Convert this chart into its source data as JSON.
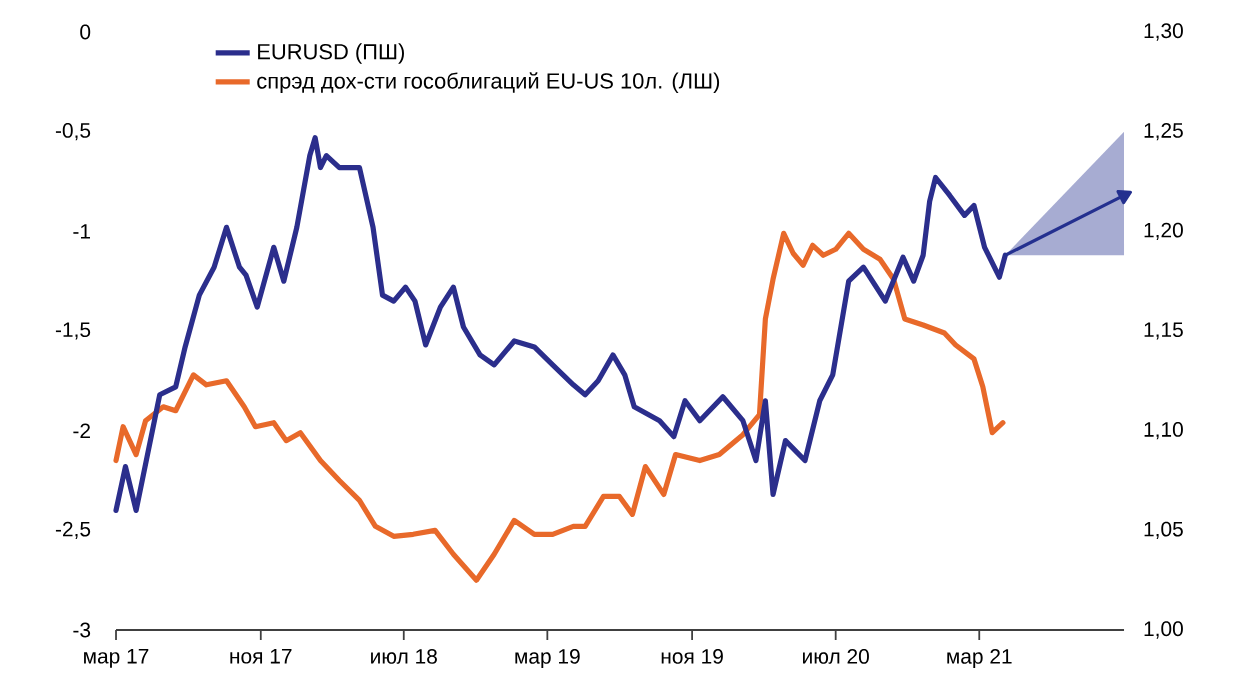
{
  "chart_data": {
    "type": "line",
    "xlim": [
      "2017-03-01",
      "2021-11-01"
    ],
    "xticks": [
      {
        "value": "2017-03-01",
        "label": "мар 17"
      },
      {
        "value": "2017-11-01",
        "label": "ноя 17"
      },
      {
        "value": "2018-07-01",
        "label": "июл 18"
      },
      {
        "value": "2019-03-01",
        "label": "мар 19"
      },
      {
        "value": "2019-11-01",
        "label": "ноя 19"
      },
      {
        "value": "2020-07-01",
        "label": "июл 20"
      },
      {
        "value": "2021-03-01",
        "label": "мар 21"
      }
    ],
    "ylim": [
      -3,
      0
    ],
    "yticks": [
      0,
      {
        "value": -0.5,
        "label": "-0,5"
      },
      -1,
      {
        "value": -1.5,
        "label": "-1,5"
      },
      -2,
      {
        "value": -2.5,
        "label": "-2,5"
      },
      -3
    ],
    "y2lim": [
      1.0,
      1.3
    ],
    "y2ticks": [
      {
        "value": 1.0,
        "label": "1,00"
      },
      {
        "value": 1.05,
        "label": "1,05"
      },
      {
        "value": 1.1,
        "label": "1,10"
      },
      {
        "value": 1.15,
        "label": "1,15"
      },
      {
        "value": 1.2,
        "label": "1,20"
      },
      {
        "value": 1.25,
        "label": "1,25"
      },
      {
        "value": 1.3,
        "label": "1,30"
      }
    ],
    "legend": "top left",
    "series": [
      {
        "name": "EURUSD (ПШ)",
        "color": "#2b2e8c",
        "axis": "y2",
        "x": [
          "2017-03-01",
          "2017-03-17",
          "2017-04-04",
          "2017-05-14",
          "2017-06-10",
          "2017-06-26",
          "2017-07-20",
          "2017-08-14",
          "2017-09-04",
          "2017-09-26",
          "2017-10-07",
          "2017-10-26",
          "2017-11-23",
          "2017-12-10",
          "2018-01-01",
          "2018-01-23",
          "2018-02-01",
          "2018-02-10",
          "2018-02-20",
          "2018-03-14",
          "2018-04-17",
          "2018-05-10",
          "2018-05-26",
          "2018-06-14",
          "2018-07-04",
          "2018-07-20",
          "2018-08-07",
          "2018-09-01",
          "2018-09-23",
          "2018-10-10",
          "2018-11-07",
          "2018-12-01",
          "2019-01-04",
          "2019-02-07",
          "2019-03-10",
          "2019-04-14",
          "2019-05-04",
          "2019-05-26",
          "2019-06-20",
          "2019-07-10",
          "2019-07-26",
          "2019-09-07",
          "2019-10-01",
          "2019-10-20",
          "2019-11-14",
          "2019-12-23",
          "2020-01-26",
          "2020-02-17",
          "2020-03-04",
          "2020-03-17",
          "2020-04-07",
          "2020-05-10",
          "2020-06-04",
          "2020-06-26",
          "2020-07-23",
          "2020-08-17",
          "2020-09-23",
          "2020-10-23",
          "2020-11-10",
          "2020-11-26",
          "2020-12-07",
          "2020-12-17",
          "2021-01-10",
          "2021-02-04",
          "2021-02-20",
          "2021-03-10",
          "2021-04-04",
          "2021-04-14"
        ],
        "values": [
          1.06,
          1.082,
          1.06,
          1.118,
          1.122,
          1.142,
          1.168,
          1.182,
          1.202,
          1.182,
          1.178,
          1.162,
          1.192,
          1.175,
          1.202,
          1.238,
          1.247,
          1.232,
          1.238,
          1.232,
          1.232,
          1.202,
          1.168,
          1.165,
          1.172,
          1.165,
          1.143,
          1.162,
          1.172,
          1.152,
          1.138,
          1.133,
          1.145,
          1.142,
          1.133,
          1.123,
          1.118,
          1.125,
          1.138,
          1.128,
          1.112,
          1.105,
          1.097,
          1.115,
          1.105,
          1.117,
          1.105,
          1.085,
          1.115,
          1.068,
          1.095,
          1.085,
          1.115,
          1.128,
          1.175,
          1.182,
          1.165,
          1.187,
          1.175,
          1.188,
          1.215,
          1.227,
          1.218,
          1.208,
          1.213,
          1.192,
          1.177,
          1.188
        ]
      },
      {
        "name": "спрэд дох-сти гособлигаций EU-US 10л. (ЛШ)",
        "color": "#e8692a",
        "x": [
          "2017-03-01",
          "2017-03-13",
          "2017-04-04",
          "2017-04-20",
          "2017-05-20",
          "2017-06-10",
          "2017-07-10",
          "2017-08-01",
          "2017-09-04",
          "2017-10-04",
          "2017-10-23",
          "2017-11-23",
          "2017-12-14",
          "2018-01-07",
          "2018-02-10",
          "2018-03-14",
          "2018-04-17",
          "2018-05-14",
          "2018-06-14",
          "2018-07-17",
          "2018-08-23",
          "2018-09-23",
          "2018-11-01",
          "2018-12-01",
          "2019-01-04",
          "2019-02-07",
          "2019-03-10",
          "2019-04-14",
          "2019-05-04",
          "2019-06-04",
          "2019-07-01",
          "2019-07-23",
          "2019-08-14",
          "2019-09-14",
          "2019-10-04",
          "2019-11-14",
          "2019-12-17",
          "2020-01-26",
          "2020-02-23",
          "2020-03-04",
          "2020-03-17",
          "2020-04-04",
          "2020-04-20",
          "2020-05-07",
          "2020-05-23",
          "2020-06-10",
          "2020-07-01",
          "2020-07-23",
          "2020-08-17",
          "2020-09-14",
          "2020-10-07",
          "2020-10-26",
          "2020-11-26",
          "2021-01-01",
          "2021-01-20",
          "2021-02-20",
          "2021-03-07",
          "2021-03-23",
          "2021-04-10"
        ],
        "values": [
          -2.15,
          -1.98,
          -2.12,
          -1.95,
          -1.88,
          -1.9,
          -1.72,
          -1.77,
          -1.75,
          -1.88,
          -1.98,
          -1.96,
          -2.05,
          -2.01,
          -2.15,
          -2.25,
          -2.35,
          -2.48,
          -2.53,
          -2.52,
          -2.5,
          -2.62,
          -2.75,
          -2.62,
          -2.45,
          -2.52,
          -2.52,
          -2.48,
          -2.48,
          -2.33,
          -2.33,
          -2.42,
          -2.18,
          -2.32,
          -2.12,
          -2.15,
          -2.12,
          -2.02,
          -1.92,
          -1.44,
          -1.24,
          -1.01,
          -1.11,
          -1.17,
          -1.07,
          -1.12,
          -1.09,
          -1.01,
          -1.09,
          -1.14,
          -1.24,
          -1.44,
          -1.47,
          -1.51,
          -1.57,
          -1.64,
          -1.78,
          -2.01,
          -1.96
        ]
      },
      {
        "color": "#24308f",
        "axis": "y2",
        "x": [
          "2021-04-14",
          "2021-11-01"
        ],
        "values": [
          1.188,
          1.218
        ],
        "lower": [
          1.188,
          1.188
        ],
        "upper": [
          1.188,
          1.25
        ]
      }
    ]
  }
}
